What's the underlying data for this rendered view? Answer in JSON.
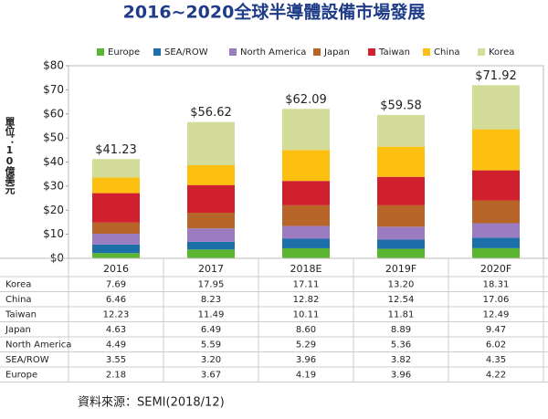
{
  "chart_data": {
    "type": "stacked-bar",
    "title": "2016~2020全球半導體設備市場發展",
    "y_label": "單位：10億美元",
    "source": "資料來源：SEMI(2018/12)",
    "categories": [
      "2016",
      "2017",
      "2018E",
      "2019F",
      "2020F"
    ],
    "ylim": [
      0,
      80
    ],
    "yticks": [
      {
        "value": 0,
        "label": "$0"
      },
      {
        "value": 10,
        "label": "$10"
      },
      {
        "value": 20,
        "label": "$20"
      },
      {
        "value": 30,
        "label": "$30"
      },
      {
        "value": 40,
        "label": "$40"
      },
      {
        "value": 50,
        "label": "$50"
      },
      {
        "value": 60,
        "label": "$60"
      },
      {
        "value": 70,
        "label": "$70"
      },
      {
        "value": 80,
        "label": "$80"
      }
    ],
    "series": [
      {
        "name": "Europe",
        "color": "#5cb531",
        "values": [
          2.18,
          3.67,
          4.19,
          3.96,
          4.22
        ],
        "value_labels": [
          "2.18",
          "3.67",
          "4.19",
          "3.96",
          "4.22"
        ]
      },
      {
        "name": "SEA/ROW",
        "color": "#1c6fa8",
        "values": [
          3.55,
          3.2,
          3.96,
          3.82,
          4.35
        ],
        "value_labels": [
          "3.55",
          "3.20",
          "3.96",
          "3.82",
          "4.35"
        ]
      },
      {
        "name": "North America",
        "color": "#9b7cc0",
        "values": [
          4.49,
          5.59,
          5.29,
          5.36,
          6.02
        ],
        "value_labels": [
          "4.49",
          "5.59",
          "5.29",
          "5.36",
          "6.02"
        ]
      },
      {
        "name": "Japan",
        "color": "#b8652a",
        "values": [
          4.63,
          6.49,
          8.6,
          8.89,
          9.47
        ],
        "value_labels": [
          "4.63",
          "6.49",
          "8.60",
          "8.89",
          "9.47"
        ]
      },
      {
        "name": "Taiwan",
        "color": "#d0202e",
        "values": [
          12.23,
          11.49,
          10.11,
          11.81,
          12.49
        ],
        "value_labels": [
          "12.23",
          "11.49",
          "10.11",
          "11.81",
          "12.49"
        ]
      },
      {
        "name": "China",
        "color": "#fdc010",
        "values": [
          6.46,
          8.23,
          12.82,
          12.54,
          17.06
        ],
        "value_labels": [
          "6.46",
          "8.23",
          "12.82",
          "12.54",
          "17.06"
        ]
      },
      {
        "name": "Korea",
        "color": "#d4dc9a",
        "values": [
          7.69,
          17.95,
          17.11,
          13.2,
          18.31
        ],
        "value_labels": [
          "7.69",
          "17.95",
          "17.11",
          "13.20",
          "18.31"
        ]
      }
    ],
    "totals": {
      "values": [
        41.23,
        56.62,
        62.09,
        59.58,
        71.92
      ],
      "value_labels": [
        "$41.23",
        "$56.62",
        "$62.09",
        "$59.58",
        "$71.92"
      ]
    }
  }
}
